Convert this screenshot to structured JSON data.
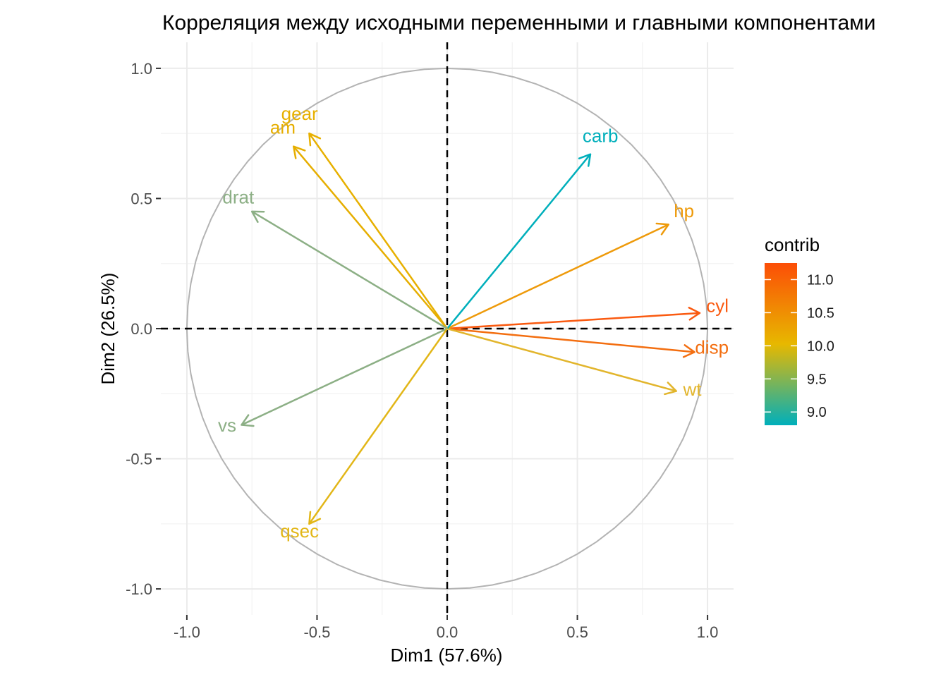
{
  "chart_data": {
    "type": "scatter",
    "title": "Корреляция между исходными переменными и главными компонентами",
    "xlabel": "Dim1 (57.6%)",
    "ylabel": "Dim2 (26.5%)",
    "xlim": [
      -1.1,
      1.1
    ],
    "ylim": [
      -1.1,
      1.1
    ],
    "x_ticks": [
      -1.0,
      -0.5,
      0.0,
      0.5,
      1.0
    ],
    "y_ticks": [
      -1.0,
      -0.5,
      0.0,
      0.5,
      1.0
    ],
    "x_tick_labels": [
      "-1.0",
      "-0.5",
      "0.0",
      "0.5",
      "1.0"
    ],
    "y_tick_labels": [
      "-1.0",
      "-0.5",
      "0.0",
      "0.5",
      "1.0"
    ],
    "grid": true,
    "unit_circle": true,
    "legend": {
      "title": "contrib",
      "placement": "right",
      "labels": [
        "11.0",
        "10.5",
        "10.0",
        "9.5",
        "9.0"
      ],
      "values": [
        11.0,
        10.5,
        10.0,
        9.5,
        9.0
      ],
      "range": [
        8.8,
        11.25
      ],
      "gradient": [
        "#00AFBB",
        "#E7B800",
        "#FC4E07"
      ]
    },
    "variables": [
      {
        "name": "cyl",
        "x": 0.97,
        "y": 0.06,
        "contrib": 11.1,
        "color": "#FA5A10"
      },
      {
        "name": "disp",
        "x": 0.95,
        "y": -0.09,
        "contrib": 10.8,
        "color": "#F36E10"
      },
      {
        "name": "hp",
        "x": 0.85,
        "y": 0.4,
        "contrib": 10.3,
        "color": "#EE9A0A"
      },
      {
        "name": "wt",
        "x": 0.88,
        "y": -0.24,
        "contrib": 9.9,
        "color": "#E2B52C"
      },
      {
        "name": "carb",
        "x": 0.55,
        "y": 0.67,
        "contrib": 8.8,
        "color": "#00AFBB"
      },
      {
        "name": "gear",
        "x": -0.53,
        "y": 0.75,
        "contrib": 10.0,
        "color": "#E7B000"
      },
      {
        "name": "am",
        "x": -0.59,
        "y": 0.7,
        "contrib": 10.1,
        "color": "#E6AE00"
      },
      {
        "name": "drat",
        "x": -0.75,
        "y": 0.45,
        "contrib": 9.3,
        "color": "#8CAF85"
      },
      {
        "name": "vs",
        "x": -0.79,
        "y": -0.37,
        "contrib": 9.3,
        "color": "#8CAF85"
      },
      {
        "name": "qsec",
        "x": -0.53,
        "y": -0.75,
        "contrib": 9.95,
        "color": "#E2B617"
      }
    ]
  }
}
